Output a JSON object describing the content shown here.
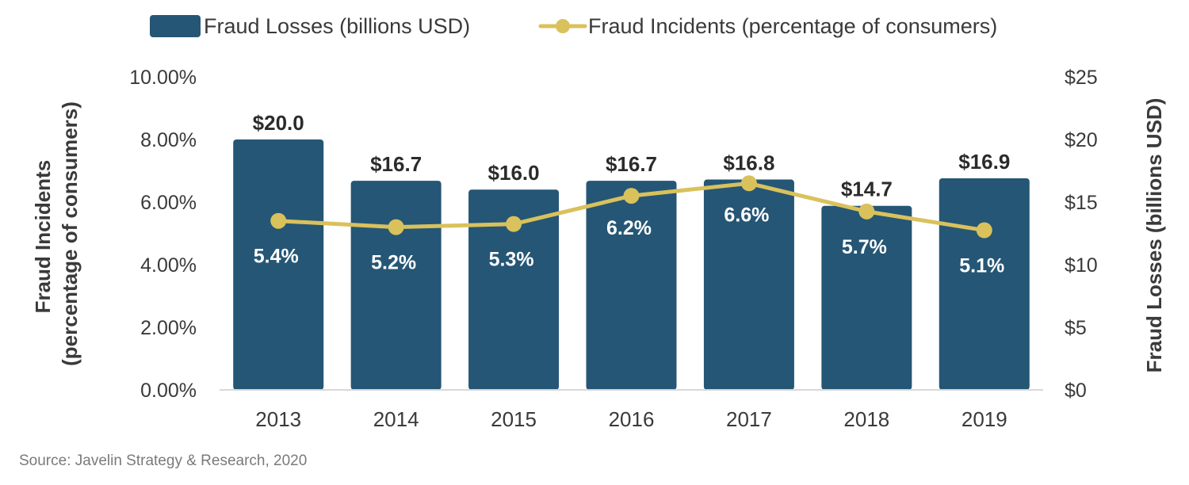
{
  "chart_data": {
    "type": "bar",
    "categories": [
      "2013",
      "2014",
      "2015",
      "2016",
      "2017",
      "2018",
      "2019"
    ],
    "series": [
      {
        "name": "Fraud Losses (billions USD)",
        "type": "bar",
        "axis": "right",
        "values": [
          20.0,
          16.7,
          16.0,
          16.7,
          16.8,
          14.7,
          16.9
        ],
        "labels": [
          "$20.0",
          "$16.7",
          "$16.0",
          "$16.7",
          "$16.8",
          "$14.7",
          "$16.9"
        ],
        "color": "#255675"
      },
      {
        "name": "Fraud Incidents (percentage of consumers)",
        "type": "line",
        "axis": "left",
        "values": [
          5.4,
          5.2,
          5.3,
          6.2,
          6.6,
          5.7,
          5.1
        ],
        "labels": [
          "5.4%",
          "5.2%",
          "5.3%",
          "6.2%",
          "6.6%",
          "5.7%",
          "5.1%"
        ],
        "color": "#d9c15c"
      }
    ],
    "y_left": {
      "label": "Fraud Incidents (percentage of consumers)",
      "label_lines": [
        "Fraud Incidents",
        "(percentage of consumers)"
      ],
      "range": [
        0,
        10
      ],
      "ticks": [
        0,
        2,
        4,
        6,
        8,
        10
      ],
      "tick_labels": [
        "0.00%",
        "2.00%",
        "4.00%",
        "6.00%",
        "8.00%",
        "10.00%"
      ]
    },
    "y_right": {
      "label": "Fraud Losses (billions USD)",
      "range": [
        0,
        25
      ],
      "ticks": [
        0,
        5,
        10,
        15,
        20,
        25
      ],
      "tick_labels": [
        "$0",
        "$5",
        "$10",
        "$15",
        "$20",
        "$25"
      ]
    },
    "grid": false,
    "legend_position": "top-center"
  },
  "source": "Source: Javelin Strategy & Research, 2020"
}
